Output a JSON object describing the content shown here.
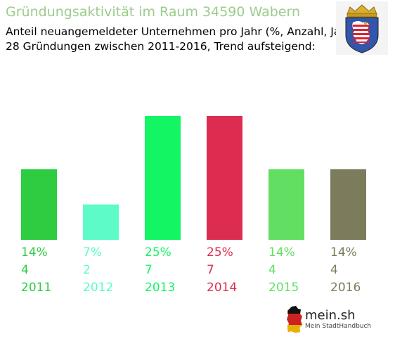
{
  "header": {
    "title": "Gründungsaktivität im Raum 34590 Wabern",
    "subtitle_line1": "Anteil neuangemeldeter Unternehmen pro Jahr (%, Anzahl, Jahr)",
    "subtitle_line2": "28 Gründungen zwischen 2011-2016, Trend aufsteigend:"
  },
  "chart_data": {
    "type": "bar",
    "categories": [
      "2011",
      "2012",
      "2013",
      "2014",
      "2015",
      "2016"
    ],
    "values": [
      4,
      2,
      7,
      7,
      4,
      4
    ],
    "percent_labels": [
      "14%",
      "7%",
      "25%",
      "25%",
      "14%",
      "14%"
    ],
    "count_labels": [
      "4",
      "2",
      "7",
      "7",
      "4",
      "4"
    ],
    "colors": [
      "#2ecc40",
      "#5cfbc8",
      "#14f564",
      "#dc2d50",
      "#62df62",
      "#7c7c5c"
    ],
    "ylim": [
      0,
      7
    ],
    "grid": false,
    "legend": "none"
  },
  "brand": {
    "name": "mein.sh",
    "tagline": "Mein StadtHandbuch"
  },
  "icons": {
    "coat_of_arms": "hessen-coat-of-arms-icon",
    "brand_logo": "germany-map-icon"
  }
}
